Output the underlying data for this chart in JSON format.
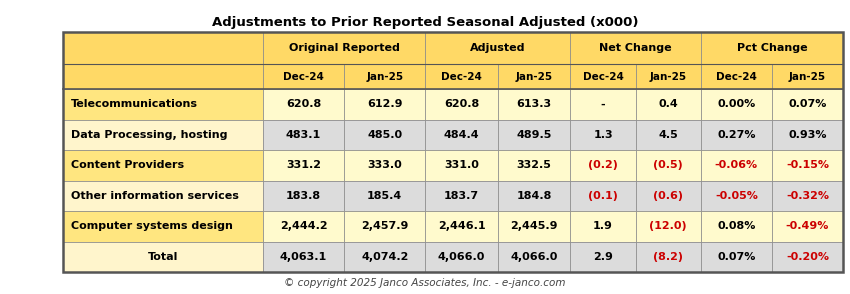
{
  "title": "Adjustments to Prior Reported Seasonal Adjusted (x000)",
  "copyright": "© copyright 2025 Janco Associates, Inc. - e-janco.com",
  "col_groups": [
    {
      "label": "Original Reported",
      "span": [
        1,
        2
      ]
    },
    {
      "label": "Adjusted",
      "span": [
        3,
        4
      ]
    },
    {
      "label": "Net Change",
      "span": [
        5,
        6
      ]
    },
    {
      "label": "Pct Change",
      "span": [
        7,
        8
      ]
    }
  ],
  "sub_headers": [
    "Dec-24",
    "Jan-25",
    "Dec-24",
    "Jan-25",
    "Dec-24",
    "Jan-25",
    "Dec-24",
    "Jan-25"
  ],
  "rows": [
    {
      "label": "Telecommunications",
      "values": [
        "620.8",
        "612.9",
        "620.8",
        "613.3",
        "-",
        "0.4",
        "0.00%",
        "0.07%"
      ],
      "colors": [
        "black",
        "black",
        "black",
        "black",
        "black",
        "black",
        "black",
        "black"
      ],
      "label_bg": "#FFE680",
      "data_bg": "#FFFACD"
    },
    {
      "label": "Data Processing, hosting",
      "values": [
        "483.1",
        "485.0",
        "484.4",
        "489.5",
        "1.3",
        "4.5",
        "0.27%",
        "0.93%"
      ],
      "colors": [
        "black",
        "black",
        "black",
        "black",
        "black",
        "black",
        "black",
        "black"
      ],
      "label_bg": "#FFF5CC",
      "data_bg": "#DCDCDC"
    },
    {
      "label": "Content Providers",
      "values": [
        "331.2",
        "333.0",
        "331.0",
        "332.5",
        "(0.2)",
        "(0.5)",
        "-0.06%",
        "-0.15%"
      ],
      "colors": [
        "black",
        "black",
        "black",
        "black",
        "#CC0000",
        "#CC0000",
        "#CC0000",
        "#CC0000"
      ],
      "label_bg": "#FFE680",
      "data_bg": "#FFFACD"
    },
    {
      "label": "Other information services",
      "values": [
        "183.8",
        "185.4",
        "183.7",
        "184.8",
        "(0.1)",
        "(0.6)",
        "-0.05%",
        "-0.32%"
      ],
      "colors": [
        "black",
        "black",
        "black",
        "black",
        "#CC0000",
        "#CC0000",
        "#CC0000",
        "#CC0000"
      ],
      "label_bg": "#FFF5CC",
      "data_bg": "#DCDCDC"
    },
    {
      "label": "Computer systems design",
      "values": [
        "2,444.2",
        "2,457.9",
        "2,446.1",
        "2,445.9",
        "1.9",
        "(12.0)",
        "0.08%",
        "-0.49%"
      ],
      "colors": [
        "black",
        "black",
        "black",
        "black",
        "black",
        "#CC0000",
        "black",
        "#CC0000"
      ],
      "label_bg": "#FFE680",
      "data_bg": "#FFFACD"
    },
    {
      "label": "Total",
      "values": [
        "4,063.1",
        "4,074.2",
        "4,066.0",
        "4,066.0",
        "2.9",
        "(8.2)",
        "0.07%",
        "-0.20%"
      ],
      "colors": [
        "black",
        "black",
        "black",
        "black",
        "black",
        "#CC0000",
        "black",
        "#CC0000"
      ],
      "label_bg": "#FFF5CC",
      "data_bg": "#DCDCDC"
    }
  ],
  "header_bg": "#FFD966",
  "fig_bg": "#FFFFFF",
  "border_color": "#888888",
  "thick_border": "#555555"
}
